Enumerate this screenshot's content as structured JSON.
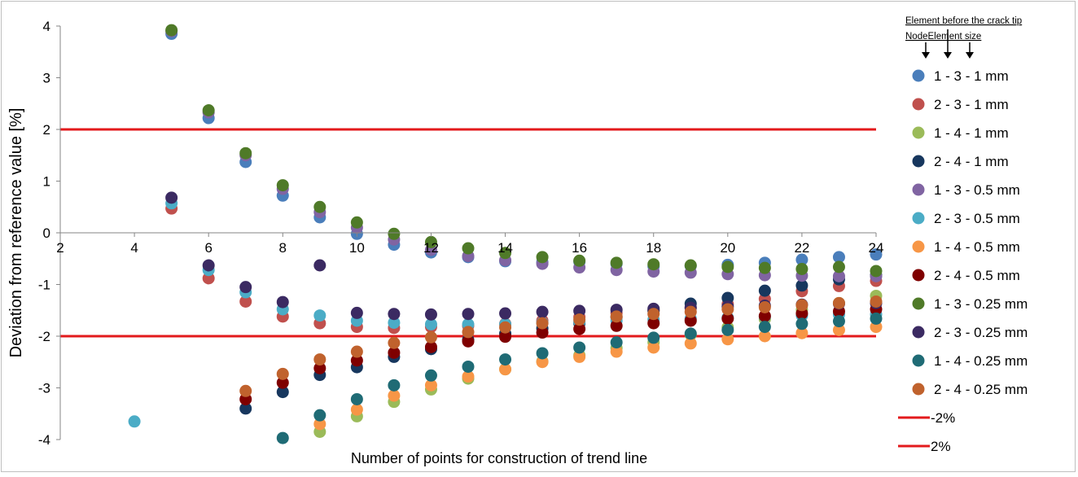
{
  "chart_data": {
    "type": "scatter",
    "title": "",
    "xlabel": "Number of points for construction of trend line",
    "ylabel": "Deviation from reference value [%]",
    "xlim": [
      2,
      24
    ],
    "ylim": [
      -4,
      4
    ],
    "x_ticks": [
      "2",
      "4",
      "6",
      "8",
      "10",
      "12",
      "14",
      "16",
      "18",
      "20",
      "22",
      "24"
    ],
    "y_ticks": [
      "4",
      "3",
      "2",
      "1",
      "0",
      "-1",
      "-2",
      "-3",
      "-4"
    ],
    "grid": false,
    "legend": {
      "position": "right",
      "header_line1": "Element before the crack tip",
      "header_line2": "NodeElement size"
    },
    "reference_lines": [
      {
        "name": "-2%",
        "y": -2,
        "color": "#e31a1c"
      },
      {
        "name": "2%",
        "y": 2,
        "color": "#e31a1c"
      }
    ],
    "series": [
      {
        "name": "1 - 3 - 1 mm",
        "color": "#4a7ebb",
        "points": [
          [
            5,
            3.85
          ],
          [
            6,
            2.22
          ],
          [
            7,
            1.37
          ],
          [
            8,
            0.72
          ],
          [
            9,
            0.3
          ],
          [
            10,
            -0.02
          ],
          [
            11,
            -0.23
          ],
          [
            12,
            -0.38
          ],
          [
            13,
            -0.47
          ],
          [
            14,
            -0.55
          ],
          [
            15,
            -0.57
          ],
          [
            16,
            -0.56
          ],
          [
            17,
            -0.6
          ],
          [
            18,
            -0.65
          ],
          [
            19,
            -0.64
          ],
          [
            20,
            -0.62
          ],
          [
            21,
            -0.58
          ],
          [
            22,
            -0.52
          ],
          [
            23,
            -0.47
          ],
          [
            24,
            -0.42
          ]
        ]
      },
      {
        "name": "2 - 3 - 1 mm",
        "color": "#c0504d",
        "points": [
          [
            5,
            0.47
          ],
          [
            6,
            -0.88
          ],
          [
            7,
            -1.33
          ],
          [
            8,
            -1.62
          ],
          [
            9,
            -1.75
          ],
          [
            10,
            -1.82
          ],
          [
            11,
            -1.84
          ],
          [
            12,
            -1.82
          ],
          [
            13,
            -1.8
          ],
          [
            14,
            -1.76
          ],
          [
            15,
            -1.7
          ],
          [
            16,
            -1.63
          ],
          [
            17,
            -1.55
          ],
          [
            18,
            -1.5
          ],
          [
            19,
            -1.45
          ],
          [
            20,
            -1.38
          ],
          [
            21,
            -1.28
          ],
          [
            22,
            -1.13
          ],
          [
            23,
            -1.03
          ],
          [
            24,
            -0.93
          ]
        ]
      },
      {
        "name": "1 - 4 - 1 mm",
        "color": "#9bbb59",
        "points": [
          [
            9,
            -3.85
          ],
          [
            10,
            -3.55
          ],
          [
            11,
            -3.27
          ],
          [
            12,
            -3.03
          ],
          [
            13,
            -2.82
          ],
          [
            14,
            -2.64
          ],
          [
            15,
            -2.49
          ],
          [
            16,
            -2.37
          ],
          [
            17,
            -2.23
          ],
          [
            18,
            -2.12
          ],
          [
            19,
            -1.97
          ],
          [
            20,
            -1.83
          ],
          [
            21,
            -1.67
          ],
          [
            22,
            -1.49
          ],
          [
            23,
            -1.36
          ],
          [
            24,
            -1.22
          ]
        ]
      },
      {
        "name": "2 - 4 - 1 mm",
        "color": "#17375e",
        "points": [
          [
            7,
            -3.4
          ],
          [
            8,
            -3.08
          ],
          [
            9,
            -2.75
          ],
          [
            10,
            -2.6
          ],
          [
            11,
            -2.4
          ],
          [
            12,
            -2.25
          ],
          [
            13,
            -2.07
          ],
          [
            14,
            -1.95
          ],
          [
            15,
            -1.85
          ],
          [
            16,
            -1.75
          ],
          [
            17,
            -1.63
          ],
          [
            18,
            -1.51
          ],
          [
            19,
            -1.37
          ],
          [
            20,
            -1.26
          ],
          [
            21,
            -1.12
          ],
          [
            22,
            -1.02
          ],
          [
            23,
            -0.9
          ],
          [
            24,
            -0.82
          ]
        ]
      },
      {
        "name": "1 - 3 - 0.5 mm",
        "color": "#8064a2",
        "points": [
          [
            5,
            3.9
          ],
          [
            6,
            2.33
          ],
          [
            7,
            1.5
          ],
          [
            8,
            0.85
          ],
          [
            9,
            0.4
          ],
          [
            10,
            0.1
          ],
          [
            11,
            -0.13
          ],
          [
            12,
            -0.33
          ],
          [
            13,
            -0.45
          ],
          [
            14,
            -0.53
          ],
          [
            15,
            -0.6
          ],
          [
            16,
            -0.67
          ],
          [
            17,
            -0.72
          ],
          [
            18,
            -0.75
          ],
          [
            19,
            -0.77
          ],
          [
            20,
            -0.8
          ],
          [
            21,
            -0.82
          ],
          [
            22,
            -0.83
          ],
          [
            23,
            -0.84
          ],
          [
            24,
            -0.84
          ]
        ]
      },
      {
        "name": "2 - 3 - 0.5 mm",
        "color": "#4bacc6",
        "points": [
          [
            4,
            -3.65
          ],
          [
            5,
            0.57
          ],
          [
            6,
            -0.72
          ],
          [
            7,
            -1.15
          ],
          [
            8,
            -1.48
          ],
          [
            9,
            -1.6
          ],
          [
            10,
            -1.7
          ],
          [
            11,
            -1.74
          ],
          [
            12,
            -1.77
          ],
          [
            13,
            -1.77
          ],
          [
            14,
            -1.77
          ],
          [
            15,
            -1.74
          ],
          [
            16,
            -1.72
          ],
          [
            17,
            -1.7
          ],
          [
            18,
            -1.68
          ],
          [
            19,
            -1.66
          ],
          [
            20,
            -1.64
          ],
          [
            21,
            -1.62
          ],
          [
            22,
            -1.6
          ],
          [
            23,
            -1.58
          ],
          [
            24,
            -1.58
          ]
        ]
      },
      {
        "name": "1 - 4 - 0.5 mm",
        "color": "#f79646",
        "points": [
          [
            9,
            -3.7
          ],
          [
            10,
            -3.42
          ],
          [
            11,
            -3.15
          ],
          [
            12,
            -2.95
          ],
          [
            13,
            -2.78
          ],
          [
            14,
            -2.64
          ],
          [
            15,
            -2.5
          ],
          [
            16,
            -2.4
          ],
          [
            17,
            -2.3
          ],
          [
            18,
            -2.22
          ],
          [
            19,
            -2.14
          ],
          [
            20,
            -2.06
          ],
          [
            21,
            -2.0
          ],
          [
            22,
            -1.94
          ],
          [
            23,
            -1.88
          ],
          [
            24,
            -1.82
          ]
        ]
      },
      {
        "name": "2 - 4 - 0.5 mm",
        "color": "#7f0000",
        "points": [
          [
            7,
            -3.22
          ],
          [
            8,
            -2.9
          ],
          [
            9,
            -2.62
          ],
          [
            10,
            -2.47
          ],
          [
            11,
            -2.32
          ],
          [
            12,
            -2.21
          ],
          [
            13,
            -2.1
          ],
          [
            14,
            -2.01
          ],
          [
            15,
            -1.93
          ],
          [
            16,
            -1.86
          ],
          [
            17,
            -1.8
          ],
          [
            18,
            -1.75
          ],
          [
            19,
            -1.7
          ],
          [
            20,
            -1.66
          ],
          [
            21,
            -1.61
          ],
          [
            22,
            -1.56
          ],
          [
            23,
            -1.52
          ],
          [
            24,
            -1.48
          ]
        ]
      },
      {
        "name": "1 - 3 - 0.25 mm",
        "color": "#4f7a28",
        "points": [
          [
            5,
            3.92
          ],
          [
            6,
            2.37
          ],
          [
            7,
            1.54
          ],
          [
            8,
            0.92
          ],
          [
            9,
            0.5
          ],
          [
            10,
            0.2
          ],
          [
            11,
            -0.02
          ],
          [
            12,
            -0.18
          ],
          [
            13,
            -0.3
          ],
          [
            14,
            -0.39
          ],
          [
            15,
            -0.47
          ],
          [
            16,
            -0.54
          ],
          [
            17,
            -0.58
          ],
          [
            18,
            -0.61
          ],
          [
            19,
            -0.63
          ],
          [
            20,
            -0.66
          ],
          [
            21,
            -0.68
          ],
          [
            22,
            -0.7
          ],
          [
            23,
            -0.66
          ],
          [
            24,
            -0.74
          ]
        ]
      },
      {
        "name": "2 - 3 - 0.25 mm",
        "color": "#3b2a62",
        "points": [
          [
            5,
            0.68
          ],
          [
            6,
            -0.63
          ],
          [
            7,
            -1.05
          ],
          [
            8,
            -1.34
          ],
          [
            9,
            -0.63
          ],
          [
            10,
            -1.55
          ],
          [
            11,
            -1.57
          ],
          [
            12,
            -1.58
          ],
          [
            13,
            -1.57
          ],
          [
            14,
            -1.56
          ],
          [
            15,
            -1.53
          ],
          [
            16,
            -1.51
          ],
          [
            17,
            -1.49
          ],
          [
            18,
            -1.47
          ],
          [
            19,
            -1.45
          ],
          [
            20,
            -1.43
          ],
          [
            21,
            -1.41
          ],
          [
            22,
            -1.39
          ],
          [
            23,
            -1.37
          ],
          [
            24,
            -1.36
          ]
        ]
      },
      {
        "name": "1 - 4 - 0.25 mm",
        "color": "#1f6b75",
        "points": [
          [
            8,
            -3.97
          ],
          [
            9,
            -3.53
          ],
          [
            10,
            -3.22
          ],
          [
            11,
            -2.95
          ],
          [
            12,
            -2.76
          ],
          [
            13,
            -2.59
          ],
          [
            14,
            -2.45
          ],
          [
            15,
            -2.33
          ],
          [
            16,
            -2.22
          ],
          [
            17,
            -2.12
          ],
          [
            18,
            -2.03
          ],
          [
            19,
            -1.95
          ],
          [
            20,
            -1.88
          ],
          [
            21,
            -1.82
          ],
          [
            22,
            -1.76
          ],
          [
            23,
            -1.71
          ],
          [
            24,
            -1.66
          ]
        ]
      },
      {
        "name": "2 - 4 - 0.25 mm",
        "color": "#c0622d",
        "points": [
          [
            7,
            -3.06
          ],
          [
            8,
            -2.73
          ],
          [
            9,
            -2.45
          ],
          [
            10,
            -2.3
          ],
          [
            11,
            -2.13
          ],
          [
            12,
            -2.02
          ],
          [
            13,
            -1.92
          ],
          [
            14,
            -1.83
          ],
          [
            15,
            -1.75
          ],
          [
            16,
            -1.68
          ],
          [
            17,
            -1.62
          ],
          [
            18,
            -1.57
          ],
          [
            19,
            -1.53
          ],
          [
            20,
            -1.48
          ],
          [
            21,
            -1.44
          ],
          [
            22,
            -1.4
          ],
          [
            23,
            -1.36
          ],
          [
            24,
            -1.33
          ]
        ]
      }
    ]
  }
}
